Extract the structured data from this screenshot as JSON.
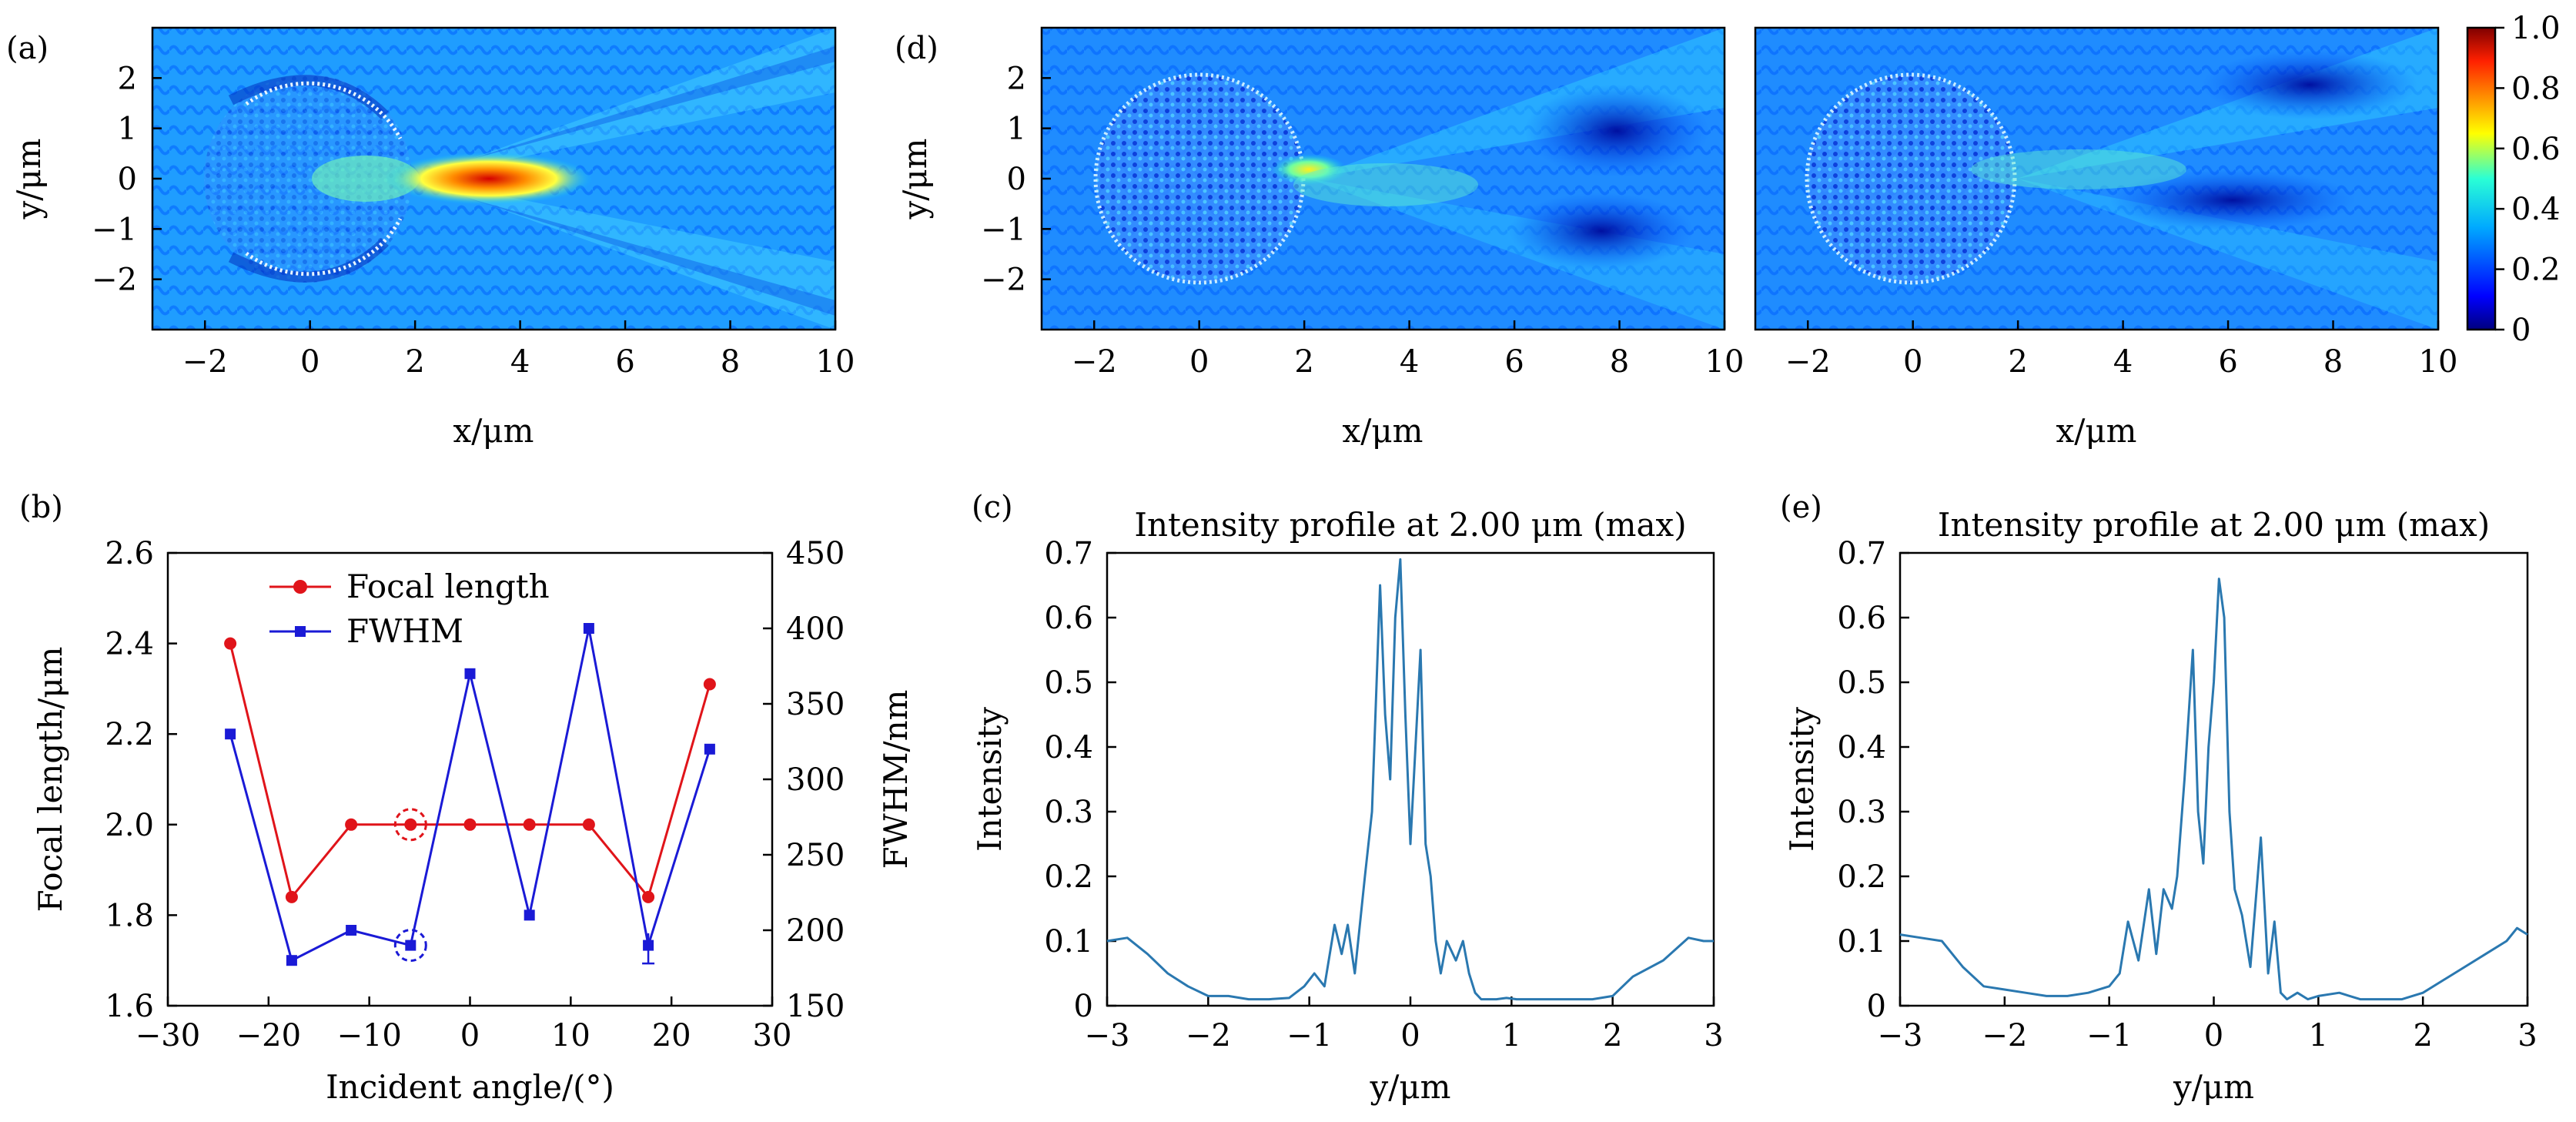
{
  "panels": {
    "a": {
      "label": "(a)",
      "xlabel": "x/μm",
      "ylabel": "y/μm",
      "xticks": [
        "−2",
        "0",
        "2",
        "4",
        "6",
        "8",
        "10"
      ],
      "yticks": [
        "2",
        "1",
        "0",
        "−1",
        "−2"
      ],
      "xrange": [
        -3,
        10
      ],
      "yrange": [
        -3,
        3
      ]
    },
    "d": {
      "label": "(d)",
      "xlabel": "x/μm",
      "ylabel": "y/μm",
      "xticks": [
        "−2",
        "0",
        "2",
        "4",
        "6",
        "8",
        "10"
      ],
      "yticks": [
        "2",
        "1",
        "0",
        "−1",
        "−2"
      ],
      "xrange": [
        -3,
        10
      ],
      "yrange": [
        -3,
        3
      ]
    },
    "d2": {
      "xlabel": "x/μm",
      "xticks": [
        "−2",
        "0",
        "2",
        "4",
        "6",
        "8",
        "10"
      ],
      "xrange": [
        -3,
        10
      ],
      "yrange": [
        -3,
        3
      ]
    },
    "b": {
      "label": "(b)"
    },
    "c": {
      "label": "(c)"
    },
    "e": {
      "label": "(e)"
    }
  },
  "colorbar": {
    "ticks": [
      "1.0",
      "0.8",
      "0.6",
      "0.4",
      "0.2",
      "0"
    ],
    "range": [
      0,
      1
    ],
    "colormap": "jet"
  },
  "colors": {
    "focal": "#e0141a",
    "fwhm": "#1a1ad6",
    "profile": "#2a78b0",
    "highlight_red": "#e0141a",
    "highlight_blue": "#1a1ad6"
  },
  "chart_data": [
    {
      "id": "b",
      "type": "line",
      "xlabel": "Incident angle/(°)",
      "ylabel": "Focal length/μm",
      "ylabel_right": "FWHM/nm",
      "xlim": [
        -30,
        30
      ],
      "ylim": [
        1.6,
        2.6
      ],
      "ylim_right": [
        150,
        450
      ],
      "xticks": [
        "−30",
        "−20",
        "−10",
        "0",
        "10",
        "20",
        "30"
      ],
      "yticks": [
        "2.6",
        "2.4",
        "2.2",
        "2.0",
        "1.8",
        "1.6"
      ],
      "yticks_right": [
        "450",
        "400",
        "350",
        "300",
        "250",
        "200",
        "150"
      ],
      "legend_placement": "top-left",
      "series": [
        {
          "name": "Focal length",
          "axis": "left",
          "marker": "circle",
          "x": [
            -23.8,
            -17.7,
            -11.8,
            -5.9,
            0,
            5.9,
            11.8,
            17.7,
            23.8
          ],
          "y": [
            2.4,
            1.84,
            2.0,
            2.0,
            2.0,
            2.0,
            2.0,
            1.84,
            2.31
          ]
        },
        {
          "name": "FWHM",
          "axis": "right",
          "marker": "square",
          "x": [
            -23.8,
            -17.7,
            -11.8,
            -5.9,
            0,
            5.9,
            11.8,
            17.7,
            23.8
          ],
          "y": [
            330,
            180,
            200,
            190,
            370,
            210,
            400,
            190,
            320
          ]
        }
      ],
      "highlight_x": -5.9
    },
    {
      "id": "c",
      "type": "line",
      "title": "Intensity profile at 2.00 μm (max)",
      "xlabel": "y/μm",
      "ylabel": "Intensity",
      "xlim": [
        -3,
        3
      ],
      "ylim": [
        0,
        0.7
      ],
      "xticks": [
        "−3",
        "−2",
        "−1",
        "0",
        "1",
        "2",
        "3"
      ],
      "yticks": [
        "0.7",
        "0.6",
        "0.5",
        "0.4",
        "0.3",
        "0.2",
        "0.1",
        "0"
      ],
      "series": [
        {
          "x": [
            -3.0,
            -2.8,
            -2.6,
            -2.4,
            -2.2,
            -2.0,
            -1.8,
            -1.6,
            -1.4,
            -1.2,
            -1.05,
            -0.95,
            -0.85,
            -0.75,
            -0.68,
            -0.62,
            -0.55,
            -0.45,
            -0.38,
            -0.3,
            -0.25,
            -0.2,
            -0.15,
            -0.1,
            -0.05,
            0.0,
            0.05,
            0.1,
            0.15,
            0.2,
            0.25,
            0.3,
            0.36,
            0.45,
            0.52,
            0.58,
            0.64,
            0.7,
            0.76,
            0.85,
            0.95,
            1.05,
            1.2,
            1.5,
            1.8,
            2.0,
            2.2,
            2.5,
            2.75,
            2.9,
            3.0
          ],
          "y": [
            0.1,
            0.105,
            0.08,
            0.05,
            0.03,
            0.015,
            0.015,
            0.01,
            0.01,
            0.012,
            0.03,
            0.05,
            0.03,
            0.125,
            0.08,
            0.125,
            0.05,
            0.2,
            0.3,
            0.65,
            0.45,
            0.35,
            0.6,
            0.69,
            0.45,
            0.25,
            0.4,
            0.55,
            0.25,
            0.2,
            0.1,
            0.05,
            0.1,
            0.07,
            0.1,
            0.05,
            0.02,
            0.01,
            0.01,
            0.01,
            0.012,
            0.01,
            0.01,
            0.01,
            0.01,
            0.015,
            0.045,
            0.07,
            0.105,
            0.1,
            0.1
          ]
        }
      ]
    },
    {
      "id": "e",
      "type": "line",
      "title": "Intensity profile at 2.00 μm (max)",
      "xlabel": "y/μm",
      "ylabel": "Intensity",
      "xlim": [
        -3,
        3
      ],
      "ylim": [
        0,
        0.7
      ],
      "xticks": [
        "−3",
        "−2",
        "−1",
        "0",
        "1",
        "2",
        "3"
      ],
      "yticks": [
        "0.7",
        "0.6",
        "0.5",
        "0.4",
        "0.3",
        "0.2",
        "0.1",
        "0"
      ],
      "series": [
        {
          "x": [
            -3.0,
            -2.8,
            -2.6,
            -2.4,
            -2.2,
            -2.0,
            -1.8,
            -1.6,
            -1.4,
            -1.2,
            -1.0,
            -0.9,
            -0.82,
            -0.72,
            -0.62,
            -0.55,
            -0.48,
            -0.4,
            -0.35,
            -0.28,
            -0.2,
            -0.15,
            -0.1,
            -0.05,
            0.0,
            0.05,
            0.1,
            0.15,
            0.2,
            0.27,
            0.35,
            0.45,
            0.52,
            0.58,
            0.64,
            0.7,
            0.8,
            0.9,
            1.0,
            1.2,
            1.4,
            1.6,
            1.8,
            2.0,
            2.2,
            2.4,
            2.6,
            2.8,
            2.9,
            3.0
          ],
          "y": [
            0.11,
            0.105,
            0.1,
            0.06,
            0.03,
            0.025,
            0.02,
            0.015,
            0.015,
            0.02,
            0.03,
            0.05,
            0.13,
            0.07,
            0.18,
            0.08,
            0.18,
            0.15,
            0.2,
            0.35,
            0.55,
            0.3,
            0.22,
            0.4,
            0.5,
            0.66,
            0.6,
            0.3,
            0.18,
            0.14,
            0.06,
            0.26,
            0.05,
            0.13,
            0.02,
            0.01,
            0.02,
            0.01,
            0.015,
            0.02,
            0.01,
            0.01,
            0.01,
            0.02,
            0.04,
            0.06,
            0.08,
            0.1,
            0.12,
            0.11
          ]
        }
      ]
    }
  ]
}
